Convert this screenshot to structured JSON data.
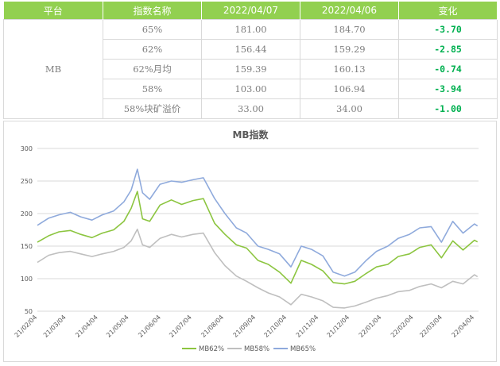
{
  "table": {
    "headers": [
      "平台",
      "指数名称",
      "2022/04/07",
      "2022/04/06",
      "变化"
    ],
    "platform": "MB",
    "rows": [
      {
        "name": "65%",
        "v1": "181.00",
        "v2": "184.70",
        "change": "-3.70"
      },
      {
        "name": "62%",
        "v1": "156.44",
        "v2": "159.29",
        "change": "-2.85"
      },
      {
        "name": "62%月均",
        "v1": "159.39",
        "v2": "160.13",
        "change": "-0.74"
      },
      {
        "name": "58%",
        "v1": "103.00",
        "v2": "106.94",
        "change": "-3.94"
      },
      {
        "name": "58%块矿溢价",
        "v1": "33.00",
        "v2": "34.00",
        "change": "-1.00"
      }
    ]
  },
  "chart_data": {
    "type": "line",
    "title": "MB指数",
    "ylim": [
      50,
      300
    ],
    "yticks": [
      50,
      100,
      150,
      200,
      250,
      300
    ],
    "xlim": [
      "21/02/04",
      "22/04/08"
    ],
    "xticks": [
      "21/02/04",
      "21/03/04",
      "21/04/04",
      "21/05/04",
      "21/06/04",
      "21/07/04",
      "21/08/04",
      "21/09/04",
      "21/10/04",
      "21/11/04",
      "21/12/04",
      "22/01/04",
      "22/02/04",
      "22/03/04",
      "22/04/04"
    ],
    "grid": true,
    "legend_position": "bottom",
    "series": [
      {
        "name": "MB62%",
        "color": "#8cc540",
        "x": [
          "21/02/04",
          "21/02/15",
          "21/02/25",
          "21/03/08",
          "21/03/18",
          "21/03/29",
          "21/04/08",
          "21/04/19",
          "21/04/29",
          "21/05/06",
          "21/05/12",
          "21/05/17",
          "21/05/24",
          "21/06/03",
          "21/06/14",
          "21/06/24",
          "21/07/05",
          "21/07/15",
          "21/07/26",
          "21/08/05",
          "21/08/16",
          "21/08/26",
          "21/09/06",
          "21/09/16",
          "21/09/27",
          "21/10/08",
          "21/10/18",
          "21/10/28",
          "21/11/08",
          "21/11/18",
          "21/11/29",
          "21/12/09",
          "21/12/20",
          "21/12/30",
          "22/01/10",
          "22/01/20",
          "22/01/31",
          "22/02/10",
          "22/02/21",
          "22/03/03",
          "22/03/14",
          "22/03/24",
          "22/04/04",
          "22/04/07"
        ],
        "values": [
          156,
          166,
          172,
          174,
          168,
          163,
          170,
          175,
          188,
          208,
          234,
          192,
          188,
          213,
          221,
          214,
          220,
          223,
          185,
          168,
          152,
          147,
          128,
          122,
          110,
          93,
          128,
          122,
          112,
          94,
          92,
          96,
          108,
          118,
          122,
          134,
          138,
          148,
          152,
          132,
          158,
          144,
          159,
          156.44
        ]
      },
      {
        "name": "MB58%",
        "color": "#bfbfbf",
        "x": [
          "21/02/04",
          "21/02/15",
          "21/02/25",
          "21/03/08",
          "21/03/18",
          "21/03/29",
          "21/04/08",
          "21/04/19",
          "21/04/29",
          "21/05/06",
          "21/05/12",
          "21/05/17",
          "21/05/24",
          "21/06/03",
          "21/06/14",
          "21/06/24",
          "21/07/05",
          "21/07/15",
          "21/07/26",
          "21/08/05",
          "21/08/16",
          "21/08/26",
          "21/09/06",
          "21/09/16",
          "21/09/27",
          "21/10/08",
          "21/10/18",
          "21/10/28",
          "21/11/08",
          "21/11/18",
          "21/11/29",
          "21/12/09",
          "21/12/20",
          "21/12/30",
          "22/01/10",
          "22/01/20",
          "22/01/31",
          "22/02/10",
          "22/02/21",
          "22/03/03",
          "22/03/14",
          "22/03/24",
          "22/04/04",
          "22/04/07"
        ],
        "values": [
          125,
          136,
          140,
          142,
          138,
          134,
          138,
          142,
          148,
          158,
          176,
          152,
          148,
          162,
          168,
          164,
          168,
          170,
          140,
          120,
          104,
          96,
          86,
          78,
          72,
          60,
          76,
          72,
          66,
          56,
          55,
          58,
          64,
          70,
          74,
          80,
          82,
          88,
          92,
          86,
          96,
          92,
          106,
          103
        ]
      },
      {
        "name": "MB65%",
        "color": "#8faadc",
        "x": [
          "21/02/04",
          "21/02/15",
          "21/02/25",
          "21/03/08",
          "21/03/18",
          "21/03/29",
          "21/04/08",
          "21/04/19",
          "21/04/29",
          "21/05/06",
          "21/05/12",
          "21/05/17",
          "21/05/24",
          "21/06/03",
          "21/06/14",
          "21/06/24",
          "21/07/05",
          "21/07/15",
          "21/07/26",
          "21/08/05",
          "21/08/16",
          "21/08/26",
          "21/09/06",
          "21/09/16",
          "21/09/27",
          "21/10/08",
          "21/10/18",
          "21/10/28",
          "21/11/08",
          "21/11/18",
          "21/11/29",
          "21/12/09",
          "21/12/20",
          "21/12/30",
          "22/01/10",
          "22/01/20",
          "22/01/31",
          "22/02/10",
          "22/02/21",
          "22/03/03",
          "22/03/14",
          "22/03/24",
          "22/04/04",
          "22/04/07"
        ],
        "values": [
          182,
          193,
          198,
          202,
          195,
          190,
          198,
          204,
          218,
          236,
          268,
          232,
          222,
          245,
          250,
          248,
          252,
          255,
          223,
          200,
          178,
          170,
          150,
          145,
          138,
          118,
          150,
          145,
          135,
          110,
          104,
          110,
          128,
          142,
          150,
          162,
          168,
          178,
          180,
          156,
          188,
          170,
          184,
          181
        ]
      }
    ]
  }
}
